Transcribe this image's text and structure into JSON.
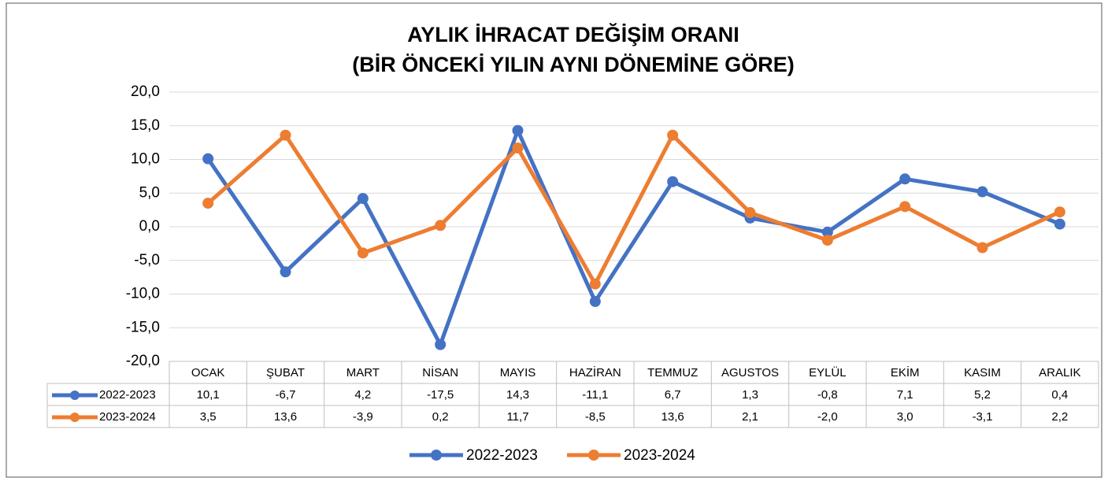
{
  "chart_data": {
    "type": "line",
    "title": "AYLIK İHRACAT DEĞİŞİM ORANI",
    "subtitle": "(BİR ÖNCEKİ YILIN AYNI DÖNEMİNE GÖRE)",
    "categories": [
      "OCAK",
      "ŞUBAT",
      "MART",
      "NİSAN",
      "MAYIS",
      "HAZİRAN",
      "TEMMUZ",
      "AGUSTOS",
      "EYLÜL",
      "EKİM",
      "KASIM",
      "ARALIK"
    ],
    "series": [
      {
        "name": "2022-2023",
        "color": "#4472c4",
        "values": [
          10.1,
          -6.7,
          4.2,
          -17.5,
          14.3,
          -11.1,
          6.7,
          1.3,
          -0.8,
          7.1,
          5.2,
          0.4
        ],
        "value_labels": [
          "10,1",
          "-6,7",
          "4,2",
          "-17,5",
          "14,3",
          "-11,1",
          "6,7",
          "1,3",
          "-0,8",
          "7,1",
          "5,2",
          "0,4"
        ]
      },
      {
        "name": "2023-2024",
        "color": "#ed7d31",
        "values": [
          3.5,
          13.6,
          -3.9,
          0.2,
          11.7,
          -8.5,
          13.6,
          2.1,
          -2.0,
          3.0,
          -3.1,
          2.2
        ],
        "value_labels": [
          "3,5",
          "13,6",
          "-3,9",
          "0,2",
          "11,7",
          "-8,5",
          "13,6",
          "2,1",
          "-2,0",
          "3,0",
          "-3,1",
          "2,2"
        ]
      }
    ],
    "ylim": [
      -20,
      20
    ],
    "yticks": [
      {
        "value": -20,
        "label": "-20,0"
      },
      {
        "value": -15,
        "label": "-15,0"
      },
      {
        "value": -10,
        "label": "-10,0"
      },
      {
        "value": -5,
        "label": "-5,0"
      },
      {
        "value": 0,
        "label": "0,0"
      },
      {
        "value": 5,
        "label": "5,0"
      },
      {
        "value": 10,
        "label": "10,0"
      },
      {
        "value": 15,
        "label": "15,0"
      },
      {
        "value": 20,
        "label": "20,0"
      }
    ],
    "grid": true
  }
}
